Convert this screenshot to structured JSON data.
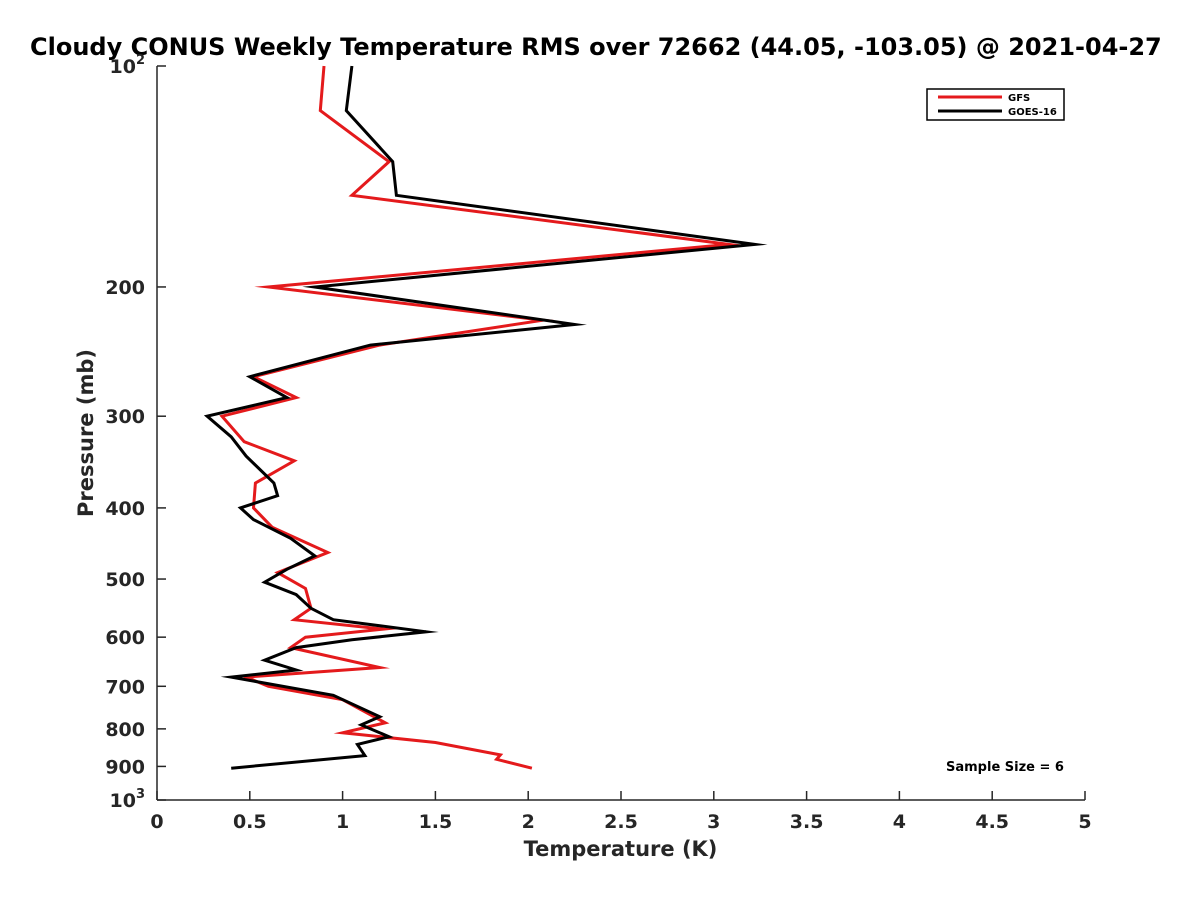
{
  "chart_data": {
    "type": "line",
    "title": "Cloudy CONUS Weekly Temperature RMS over 72662 (44.05, -103.05) @ 2021-04-27",
    "xlabel": "Temperature (K)",
    "ylabel": "Pressure (mb)",
    "xlim": [
      0,
      5
    ],
    "ylim": [
      100,
      1000
    ],
    "y_scale": "log",
    "y_reversed": true,
    "x_ticks": [
      "0",
      "0.5",
      "1",
      "1.5",
      "2",
      "2.5",
      "3",
      "3.5",
      "4",
      "4.5",
      "5"
    ],
    "y_ticks": [
      {
        "value": 100,
        "base": "10",
        "exp": "2"
      },
      {
        "value": 200,
        "label": "200"
      },
      {
        "value": 300,
        "label": "300"
      },
      {
        "value": 400,
        "label": "400"
      },
      {
        "value": 500,
        "label": "500"
      },
      {
        "value": 600,
        "label": "600"
      },
      {
        "value": 700,
        "label": "700"
      },
      {
        "value": 800,
        "label": "800"
      },
      {
        "value": 900,
        "label": "900"
      },
      {
        "value": 1000,
        "base": "10",
        "exp": "3"
      }
    ],
    "grid": false,
    "legend_position": "top-right",
    "annotation": "Sample Size = 6",
    "series": [
      {
        "name": "GFS",
        "color": "#e41a1c",
        "points": [
          [
            0.9,
            100
          ],
          [
            0.88,
            115
          ],
          [
            1.25,
            135
          ],
          [
            1.05,
            150
          ],
          [
            3.08,
            175
          ],
          [
            0.6,
            200
          ],
          [
            2.08,
            222
          ],
          [
            1.2,
            240
          ],
          [
            0.52,
            265
          ],
          [
            0.75,
            283
          ],
          [
            0.35,
            300
          ],
          [
            0.47,
            325
          ],
          [
            0.74,
            345
          ],
          [
            0.53,
            370
          ],
          [
            0.52,
            400
          ],
          [
            0.62,
            425
          ],
          [
            0.92,
            460
          ],
          [
            0.65,
            490
          ],
          [
            0.8,
            515
          ],
          [
            0.83,
            548
          ],
          [
            0.74,
            568
          ],
          [
            1.22,
            585
          ],
          [
            0.8,
            600
          ],
          [
            0.72,
            620
          ],
          [
            1.2,
            660
          ],
          [
            0.48,
            680
          ],
          [
            0.6,
            700
          ],
          [
            1.0,
            730
          ],
          [
            1.23,
            785
          ],
          [
            1.0,
            810
          ],
          [
            1.5,
            835
          ],
          [
            1.85,
            868
          ],
          [
            1.83,
            880
          ],
          [
            2.02,
            905
          ]
        ]
      },
      {
        "name": "GOES-16",
        "color": "#000000",
        "points": [
          [
            1.05,
            100
          ],
          [
            1.02,
            115
          ],
          [
            1.27,
            135
          ],
          [
            1.29,
            150
          ],
          [
            3.22,
            175
          ],
          [
            0.85,
            200
          ],
          [
            2.25,
            225
          ],
          [
            1.15,
            240
          ],
          [
            0.5,
            265
          ],
          [
            0.7,
            283
          ],
          [
            0.27,
            300
          ],
          [
            0.4,
            320
          ],
          [
            0.48,
            340
          ],
          [
            0.63,
            370
          ],
          [
            0.65,
            385
          ],
          [
            0.45,
            400
          ],
          [
            0.52,
            415
          ],
          [
            0.72,
            440
          ],
          [
            0.85,
            465
          ],
          [
            0.7,
            485
          ],
          [
            0.58,
            505
          ],
          [
            0.75,
            525
          ],
          [
            0.83,
            548
          ],
          [
            0.95,
            568
          ],
          [
            1.45,
            590
          ],
          [
            1.05,
            605
          ],
          [
            0.75,
            620
          ],
          [
            0.58,
            645
          ],
          [
            0.75,
            665
          ],
          [
            0.4,
            680
          ],
          [
            0.95,
            720
          ],
          [
            1.2,
            770
          ],
          [
            1.1,
            790
          ],
          [
            1.25,
            820
          ],
          [
            1.08,
            840
          ],
          [
            1.12,
            870
          ],
          [
            0.4,
            905
          ]
        ]
      }
    ]
  }
}
